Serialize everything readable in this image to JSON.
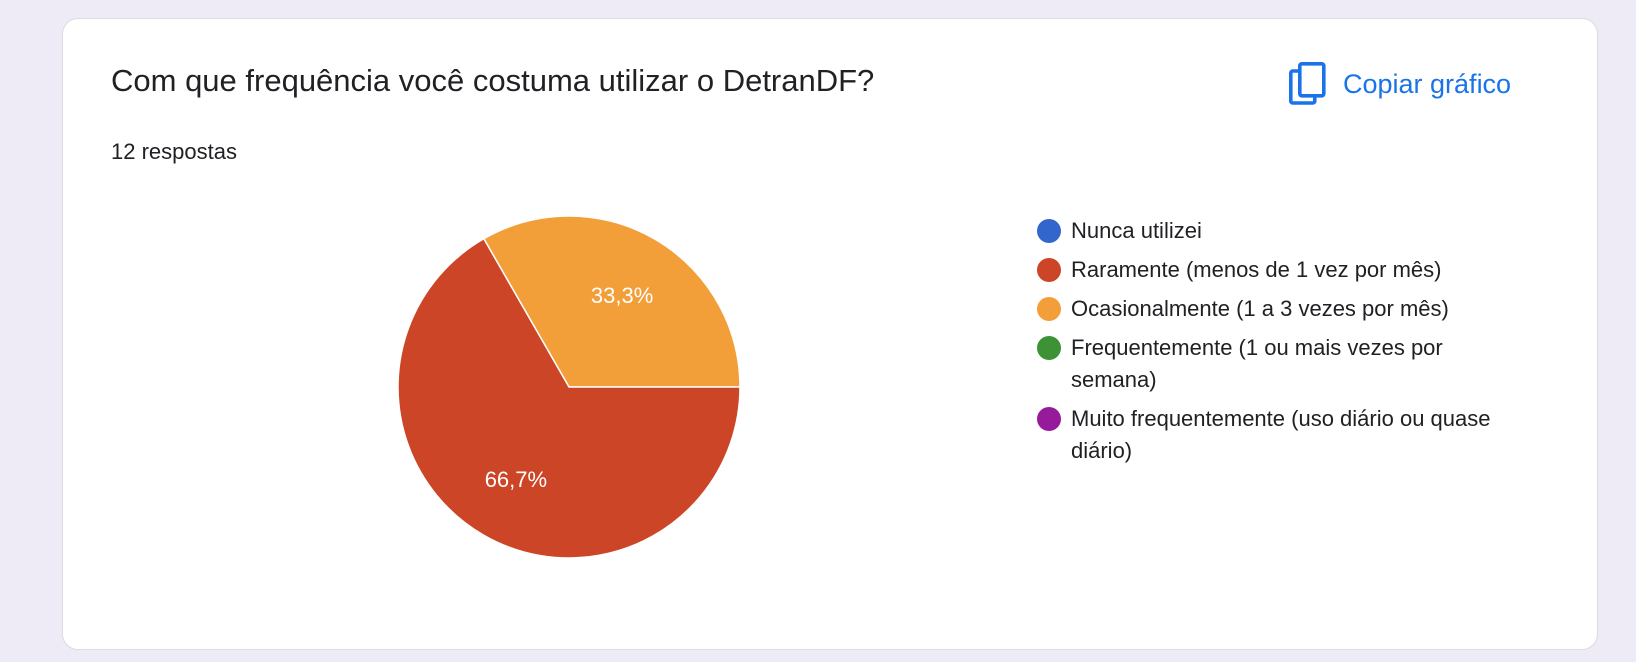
{
  "card": {
    "title": "Com que frequência você costuma utilizar o DetranDF?",
    "responses": "12 respostas",
    "copy_label": "Copiar gráfico",
    "copy_icon": "copy-icon",
    "accent_color": "#1a73e8"
  },
  "chart_data": {
    "type": "pie",
    "categories": [
      "Nunca utilizei",
      "Raramente (menos de 1 vez por mês)",
      "Ocasionalmente (1 a 3 vezes por mês)",
      "Frequentemente (1 ou mais vezes por semana)",
      "Muito frequentemente (uso diário ou quase diário)"
    ],
    "values": [
      0,
      66.7,
      33.3,
      0,
      0
    ],
    "labels": [
      "",
      "66,7%",
      "33,3%",
      "",
      ""
    ],
    "colors": [
      "#3366cc",
      "#cc4527",
      "#f29f39",
      "#3c9234",
      "#961b9b"
    ],
    "legend_position": "right",
    "title": "",
    "grid": false
  }
}
